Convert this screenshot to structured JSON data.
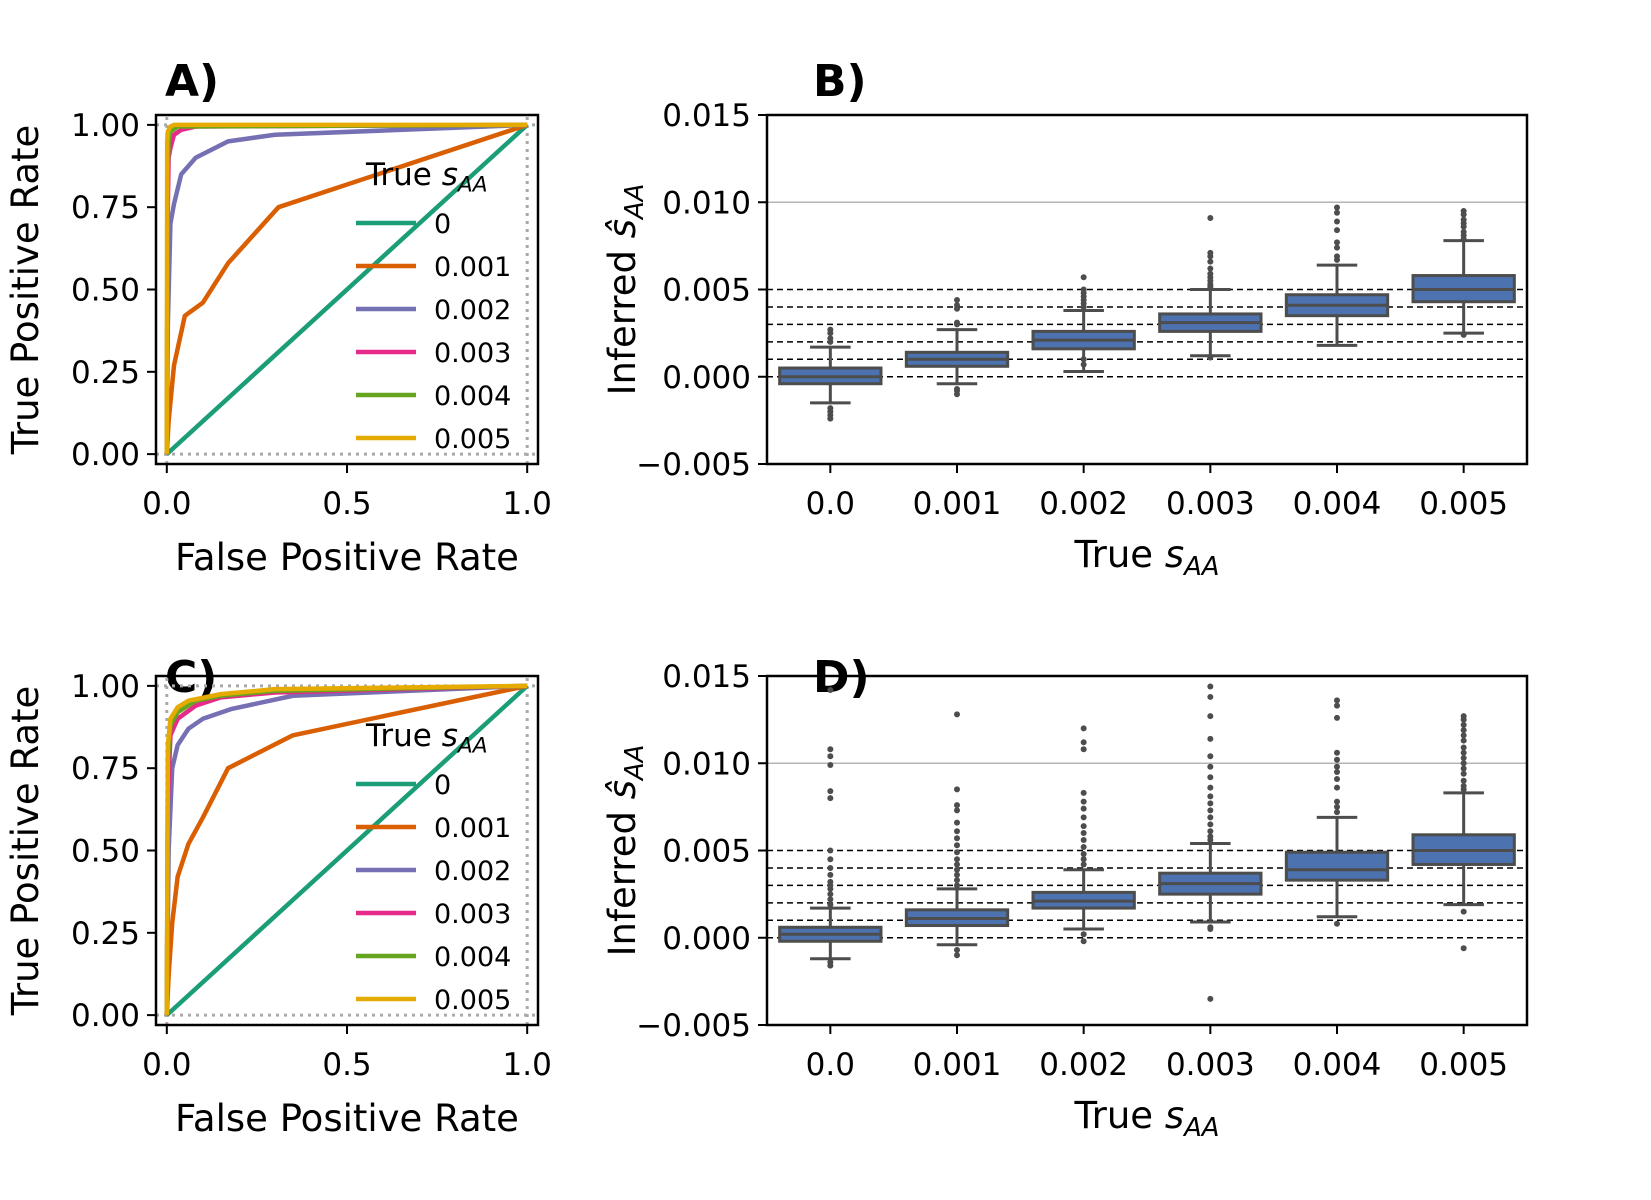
{
  "panels": {
    "A": {
      "label": "A)"
    },
    "B": {
      "label": "B)"
    },
    "C": {
      "label": "C)"
    },
    "D": {
      "label": "D)"
    }
  },
  "chart_data": [
    {
      "id": "A",
      "type": "line",
      "xlabel": "False Positive Rate",
      "ylabel": "True Positive Rate",
      "xlim": [
        -0.03,
        1.03
      ],
      "ylim": [
        -0.03,
        1.03
      ],
      "xticks": [
        0.0,
        0.5,
        1.0
      ],
      "xtick_labels": [
        "0.0",
        "0.5",
        "1.0"
      ],
      "yticks": [
        0.0,
        0.25,
        0.5,
        0.75,
        1.0
      ],
      "ytick_labels": [
        "0.00",
        "0.25",
        "0.50",
        "0.75",
        "1.00"
      ],
      "reference_lines": {
        "style": "dotted",
        "color": "#aaaaaa"
      },
      "legend": {
        "title_main": "True ",
        "title_sym": "s",
        "title_sub": "AA",
        "placement": "center-right"
      },
      "series": [
        {
          "name": "0",
          "color": "#1b9e77",
          "x": [
            0,
            1
          ],
          "y": [
            0,
            1
          ]
        },
        {
          "name": "0.001",
          "color": "#d95f02",
          "x": [
            0,
            0.005,
            0.02,
            0.05,
            0.1,
            0.17,
            0.31,
            1.0
          ],
          "y": [
            0,
            0.1,
            0.27,
            0.42,
            0.46,
            0.58,
            0.75,
            1.0
          ]
        },
        {
          "name": "0.002",
          "color": "#7570b3",
          "x": [
            0,
            0.003,
            0.01,
            0.02,
            0.04,
            0.08,
            0.17,
            0.3,
            1.0
          ],
          "y": [
            0,
            0.4,
            0.7,
            0.76,
            0.85,
            0.9,
            0.95,
            0.97,
            1.0
          ]
        },
        {
          "name": "0.003",
          "color": "#e7298a",
          "x": [
            0,
            0.002,
            0.005,
            0.01,
            0.02,
            0.04,
            0.08,
            1.0
          ],
          "y": [
            0,
            0.7,
            0.9,
            0.93,
            0.97,
            0.985,
            0.995,
            1.0
          ]
        },
        {
          "name": "0.004",
          "color": "#66a61e",
          "x": [
            0,
            0.002,
            0.005,
            0.01,
            0.03,
            1.0
          ],
          "y": [
            0,
            0.85,
            0.95,
            0.98,
            0.995,
            1.0
          ]
        },
        {
          "name": "0.005",
          "color": "#e6ab02",
          "x": [
            0,
            0.001,
            0.003,
            0.01,
            0.02,
            1.0
          ],
          "y": [
            0,
            0.95,
            0.98,
            0.995,
            1.0,
            1.0
          ]
        }
      ]
    },
    {
      "id": "B",
      "type": "box",
      "xlabel_main": "True ",
      "xlabel_sym": "s",
      "xlabel_sub": "AA",
      "ylabel_main": "Inferred ",
      "ylabel_sym": "ŝ",
      "ylabel_sub": "AA",
      "ylim": [
        -0.005,
        0.015
      ],
      "yticks": [
        -0.005,
        0.0,
        0.005,
        0.01,
        0.015
      ],
      "ytick_labels": [
        "−0.005",
        "0.000",
        "0.005",
        "0.010",
        "0.015"
      ],
      "categories": [
        "0.0",
        "0.001",
        "0.002",
        "0.003",
        "0.004",
        "0.005"
      ],
      "box_color": "#4c72b0",
      "hlines_solid": [
        0.01
      ],
      "hlines_dashed": [
        0.0,
        0.001,
        0.002,
        0.003,
        0.004,
        0.005
      ],
      "boxes": [
        {
          "q1": -0.0004,
          "median": 0.0,
          "q3": 0.0005,
          "wlo": -0.0015,
          "whi": 0.0017,
          "outliers": [
            0.0027,
            0.0025,
            0.0022,
            0.002,
            -0.0018,
            -0.002,
            -0.0022,
            -0.0024
          ]
        },
        {
          "q1": 0.0006,
          "median": 0.001,
          "q3": 0.0014,
          "wlo": -0.0004,
          "whi": 0.0027,
          "outliers": [
            0.0044,
            0.0041,
            0.0039,
            0.0031,
            0.003,
            -0.0007,
            -0.0008,
            -0.001
          ]
        },
        {
          "q1": 0.0016,
          "median": 0.0021,
          "q3": 0.0026,
          "wlo": 0.0003,
          "whi": 0.0038,
          "outliers": [
            0.0057,
            0.005,
            0.0048,
            0.0046,
            0.0044,
            0.0042,
            0.004,
            0.001,
            0.0007
          ]
        },
        {
          "q1": 0.0026,
          "median": 0.0031,
          "q3": 0.0036,
          "wlo": 0.0012,
          "whi": 0.005,
          "outliers": [
            0.0091,
            0.0071,
            0.0069,
            0.0066,
            0.0062,
            0.0059,
            0.0057,
            0.0055,
            0.0053,
            0.0052,
            0.0051,
            0.0011
          ]
        },
        {
          "q1": 0.0035,
          "median": 0.0041,
          "q3": 0.0047,
          "wlo": 0.0018,
          "whi": 0.0064,
          "outliers": [
            0.0097,
            0.0094,
            0.0089,
            0.0084,
            0.0077,
            0.0074,
            0.0069,
            0.0067
          ]
        },
        {
          "q1": 0.0043,
          "median": 0.005,
          "q3": 0.0058,
          "wlo": 0.0025,
          "whi": 0.0078,
          "outliers": [
            0.0095,
            0.0093,
            0.009,
            0.0088,
            0.0086,
            0.0083,
            0.0081,
            0.0079,
            0.0024
          ]
        }
      ]
    },
    {
      "id": "C",
      "type": "line",
      "xlabel": "False Positive Rate",
      "ylabel": "True Positive Rate",
      "xlim": [
        -0.03,
        1.03
      ],
      "ylim": [
        -0.03,
        1.03
      ],
      "xticks": [
        0.0,
        0.5,
        1.0
      ],
      "xtick_labels": [
        "0.0",
        "0.5",
        "1.0"
      ],
      "yticks": [
        0.0,
        0.25,
        0.5,
        0.75,
        1.0
      ],
      "ytick_labels": [
        "0.00",
        "0.25",
        "0.50",
        "0.75",
        "1.00"
      ],
      "reference_lines": {
        "style": "dotted",
        "color": "#aaaaaa"
      },
      "legend": {
        "title_main": "True ",
        "title_sym": "s",
        "title_sub": "AA",
        "placement": "center-right"
      },
      "series": [
        {
          "name": "0",
          "color": "#1b9e77",
          "x": [
            0,
            1
          ],
          "y": [
            0,
            1
          ]
        },
        {
          "name": "0.001",
          "color": "#d95f02",
          "x": [
            0,
            0.005,
            0.015,
            0.03,
            0.06,
            0.1,
            0.17,
            0.35,
            1.0
          ],
          "y": [
            0,
            0.12,
            0.28,
            0.42,
            0.52,
            0.6,
            0.75,
            0.85,
            1.0
          ]
        },
        {
          "name": "0.002",
          "color": "#7570b3",
          "x": [
            0,
            0.005,
            0.015,
            0.03,
            0.06,
            0.1,
            0.18,
            0.35,
            1.0
          ],
          "y": [
            0,
            0.5,
            0.75,
            0.82,
            0.87,
            0.9,
            0.93,
            0.97,
            1.0
          ]
        },
        {
          "name": "0.003",
          "color": "#e7298a",
          "x": [
            0,
            0.003,
            0.01,
            0.03,
            0.08,
            0.15,
            0.3,
            1.0
          ],
          "y": [
            0,
            0.65,
            0.85,
            0.9,
            0.94,
            0.965,
            0.98,
            1.0
          ]
        },
        {
          "name": "0.004",
          "color": "#66a61e",
          "x": [
            0,
            0.003,
            0.01,
            0.03,
            0.08,
            0.15,
            0.3,
            1.0
          ],
          "y": [
            0,
            0.78,
            0.88,
            0.92,
            0.955,
            0.97,
            0.985,
            1.0
          ]
        },
        {
          "name": "0.005",
          "color": "#e6ab02",
          "x": [
            0,
            0.003,
            0.01,
            0.03,
            0.06,
            0.15,
            0.3,
            1.0
          ],
          "y": [
            0,
            0.82,
            0.9,
            0.935,
            0.955,
            0.975,
            0.99,
            1.0
          ]
        }
      ]
    },
    {
      "id": "D",
      "type": "box",
      "xlabel_main": "True ",
      "xlabel_sym": "s",
      "xlabel_sub": "AA",
      "ylabel_main": "Inferred ",
      "ylabel_sym": "ŝ",
      "ylabel_sub": "AA",
      "ylim": [
        -0.005,
        0.015
      ],
      "yticks": [
        -0.005,
        0.0,
        0.005,
        0.01,
        0.015
      ],
      "ytick_labels": [
        "−0.005",
        "0.000",
        "0.005",
        "0.010",
        "0.015"
      ],
      "categories": [
        "0.0",
        "0.001",
        "0.002",
        "0.003",
        "0.004",
        "0.005"
      ],
      "box_color": "#4c72b0",
      "hlines_solid": [
        0.01
      ],
      "hlines_dashed": [
        0.0,
        0.001,
        0.002,
        0.003,
        0.004,
        0.005
      ],
      "boxes": [
        {
          "q1": -0.0002,
          "median": 0.0002,
          "q3": 0.0006,
          "wlo": -0.0012,
          "whi": 0.0017,
          "outliers": [
            0.0142,
            0.0108,
            0.0104,
            0.0099,
            0.0084,
            0.008,
            0.005,
            0.0045,
            0.004,
            0.0036,
            0.0032,
            0.003,
            0.0028,
            0.0025,
            0.0022,
            0.0019,
            -0.0014,
            -0.0016
          ]
        },
        {
          "q1": 0.0007,
          "median": 0.0011,
          "q3": 0.0016,
          "wlo": -0.0004,
          "whi": 0.0028,
          "outliers": [
            0.0128,
            0.0085,
            0.0076,
            0.0073,
            0.0066,
            0.0061,
            0.0057,
            0.0053,
            0.0049,
            0.0045,
            0.0042,
            0.0039,
            0.0036,
            0.0033,
            0.003,
            -0.0007,
            -0.001
          ]
        },
        {
          "q1": 0.0017,
          "median": 0.0021,
          "q3": 0.0026,
          "wlo": 0.0005,
          "whi": 0.0039,
          "outliers": [
            0.012,
            0.0112,
            0.0108,
            0.0083,
            0.0078,
            0.0074,
            0.0069,
            0.0064,
            0.006,
            0.0056,
            0.0052,
            0.0048,
            0.0045,
            0.0042,
            0.0002,
            -0.0002
          ]
        },
        {
          "q1": 0.0025,
          "median": 0.0031,
          "q3": 0.0037,
          "wlo": 0.0009,
          "whi": 0.0054,
          "outliers": [
            0.0144,
            0.0138,
            0.0127,
            0.0114,
            0.0104,
            0.0098,
            0.0092,
            0.0086,
            0.0081,
            0.0077,
            0.0073,
            0.0069,
            0.0065,
            0.0061,
            0.0058,
            0.0056,
            0.0006,
            0.0005,
            -0.0035
          ]
        },
        {
          "q1": 0.0033,
          "median": 0.0039,
          "q3": 0.0049,
          "wlo": 0.0012,
          "whi": 0.0069,
          "outliers": [
            0.0136,
            0.0133,
            0.0126,
            0.0106,
            0.0102,
            0.0098,
            0.0095,
            0.0091,
            0.0086,
            0.0078,
            0.0075,
            0.0072,
            0.0008
          ]
        },
        {
          "q1": 0.0042,
          "median": 0.005,
          "q3": 0.0059,
          "wlo": 0.0019,
          "whi": 0.0083,
          "outliers": [
            0.0127,
            0.0125,
            0.0122,
            0.0119,
            0.0116,
            0.0113,
            0.0109,
            0.0106,
            0.0103,
            0.01,
            0.0097,
            0.0094,
            0.009,
            0.0087,
            0.0085,
            0.0015,
            -0.0006
          ]
        }
      ]
    }
  ]
}
